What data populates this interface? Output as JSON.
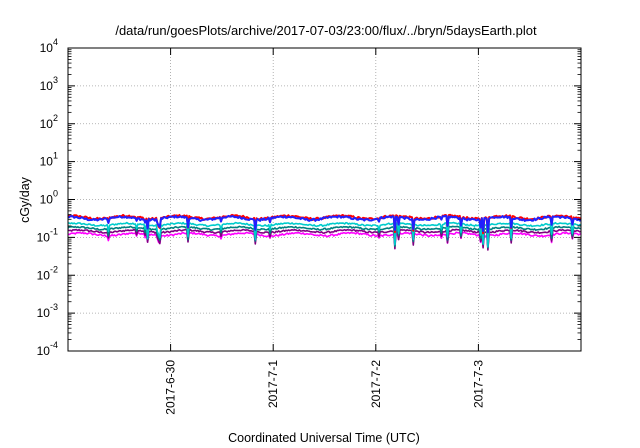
{
  "chart_data": {
    "type": "line",
    "title": "/data/run/goesPlots/archive/2017-07-03/23:00/flux/../bryn/5daysEarth.plot",
    "xlabel": "Coordinated Universal Time (UTC)",
    "ylabel": "cGy/day",
    "yscale": "log",
    "ylim": [
      0.0001,
      10000
    ],
    "xlim": [
      "2017-06-29T00:00",
      "2017-07-04T00:00"
    ],
    "grid": true,
    "legend": "none",
    "y_ticks": [
      {
        "base": "10",
        "exp": "-4"
      },
      {
        "base": "10",
        "exp": "-3"
      },
      {
        "base": "10",
        "exp": "-2"
      },
      {
        "base": "10",
        "exp": "-1"
      },
      {
        "base": "10",
        "exp": "0"
      },
      {
        "base": "10",
        "exp": "1"
      },
      {
        "base": "10",
        "exp": "2"
      },
      {
        "base": "10",
        "exp": "3"
      },
      {
        "base": "10",
        "exp": "4"
      }
    ],
    "x_ticks": [
      {
        "label": "2017-6-30",
        "t": "2017-06-30T00:00"
      },
      {
        "label": "2017-7-1",
        "t": "2017-07-01T00:00"
      },
      {
        "label": "2017-7-2",
        "t": "2017-07-02T00:00"
      },
      {
        "label": "2017-7-3",
        "t": "2017-07-03T00:00"
      }
    ],
    "series": [
      {
        "color": "#ff00ff",
        "base": 0.12,
        "amp": 0.14,
        "dip": 0.45
      },
      {
        "color": "#800080",
        "base": 0.145,
        "amp": 0.12,
        "dip": 0.6
      },
      {
        "color": "#008080",
        "base": 0.175,
        "amp": 0.12,
        "dip": 0.6
      },
      {
        "color": "#00cccc",
        "base": 0.22,
        "amp": 0.12,
        "dip": 0.65
      },
      {
        "color": "#ff0000",
        "base": 0.34,
        "amp": 0.16,
        "dip": 0.55
      },
      {
        "color": "#2020ff",
        "base": 0.32,
        "amp": 0.16,
        "dip": 0.5
      }
    ]
  }
}
